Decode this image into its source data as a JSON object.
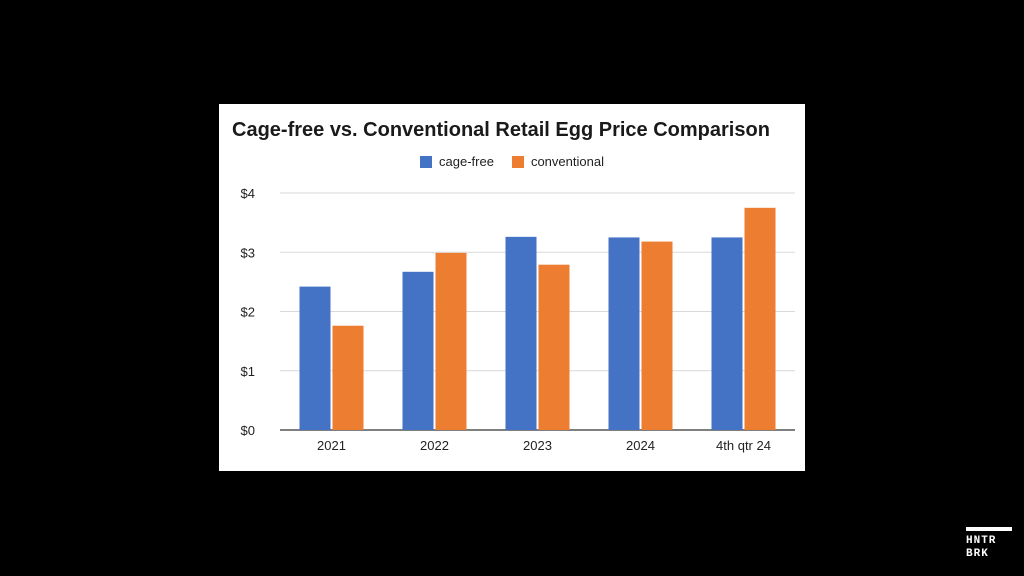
{
  "chart_data": {
    "type": "bar",
    "title": "Cage-free vs. Conventional Retail Egg Price Comparison",
    "categories": [
      "2021",
      "2022",
      "2023",
      "2024",
      "4th qtr 24"
    ],
    "series": [
      {
        "name": "cage-free",
        "color": "#4472c4",
        "values": [
          2.42,
          2.67,
          3.26,
          3.25,
          3.25
        ]
      },
      {
        "name": "conventional",
        "color": "#ed7d31",
        "values": [
          1.76,
          2.99,
          2.79,
          3.18,
          3.75
        ]
      }
    ],
    "ylim": [
      0,
      4
    ],
    "y_ticks": [
      "$0",
      "$1",
      "$2",
      "$3",
      "$4"
    ],
    "y_tick_values": [
      0,
      1,
      2,
      3,
      4
    ],
    "xlabel": "",
    "ylabel": "",
    "grid": true,
    "legend_position": "top"
  },
  "logo": {
    "line1": "HNTR",
    "line2": "BRK"
  }
}
